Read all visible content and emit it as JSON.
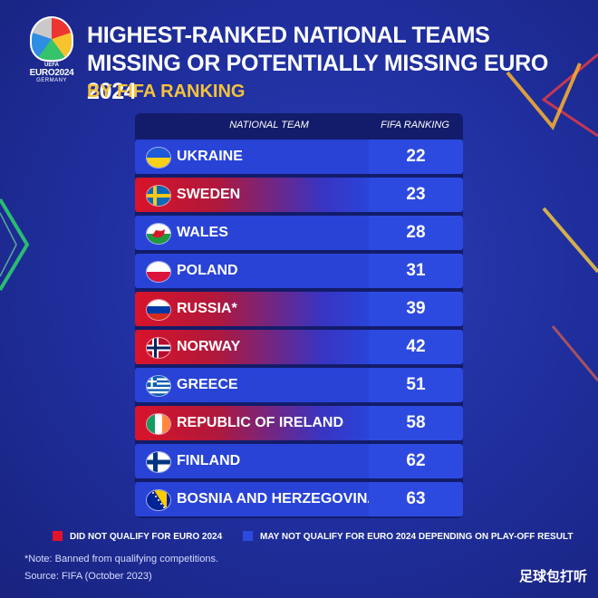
{
  "logo": {
    "uefa": "UEFA",
    "euro": "EURO2024",
    "country": "GERMANY"
  },
  "title": "HIGHEST-RANKED NATIONAL TEAMS MISSING OR POTENTIALLY MISSING EURO 2024",
  "subtitle": "BY FIFA RANKING",
  "table": {
    "col_team": "NATIONAL TEAM",
    "col_rank": "FIFA RANKING",
    "rows": [
      {
        "team": "UKRAINE",
        "rank": "22",
        "status": "play-off",
        "flag": "ukraine-flag-icon"
      },
      {
        "team": "SWEDEN",
        "rank": "23",
        "status": "not-qualified",
        "flag": "sweden-flag-icon"
      },
      {
        "team": "WALES",
        "rank": "28",
        "status": "play-off",
        "flag": "wales-flag-icon"
      },
      {
        "team": "POLAND",
        "rank": "31",
        "status": "play-off",
        "flag": "poland-flag-icon"
      },
      {
        "team": "RUSSIA*",
        "rank": "39",
        "status": "not-qualified",
        "flag": "russia-flag-icon"
      },
      {
        "team": "NORWAY",
        "rank": "42",
        "status": "not-qualified",
        "flag": "norway-flag-icon"
      },
      {
        "team": "GREECE",
        "rank": "51",
        "status": "play-off",
        "flag": "greece-flag-icon"
      },
      {
        "team": "REPUBLIC OF IRELAND",
        "rank": "58",
        "status": "not-qualified",
        "flag": "ireland-flag-icon"
      },
      {
        "team": "FINLAND",
        "rank": "62",
        "status": "play-off",
        "flag": "finland-flag-icon"
      },
      {
        "team": "BOSNIA AND HERZEGOVINA",
        "rank": "63",
        "status": "play-off",
        "flag": "bosnia-flag-icon"
      }
    ]
  },
  "legend": {
    "red_label": "DID NOT QUALIFY FOR EURO 2024",
    "blue_label": "MAY NOT QUALIFY FOR EURO 2024 DEPENDING ON PLAY-OFF RESULT"
  },
  "colors": {
    "red": "#e0142a",
    "blue": "#2843d6",
    "accent": "#f5c23a"
  },
  "note": "*Note: Banned from qualifying competitions.",
  "source": "Source: FIFA (October 2023)",
  "watermark": "足球包打听"
}
